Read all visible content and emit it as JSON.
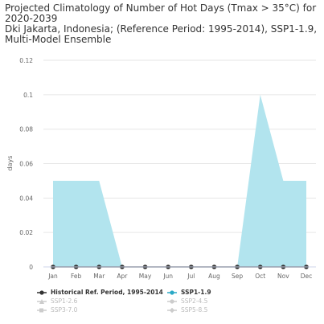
{
  "header": {
    "title_line1": "Projected Climatology of Number of Hot Days (Tmax > 35°C) for",
    "title_line2": "2020-2039",
    "title_line3": "Dki Jakarta, Indonesia; (Reference Period: 1995-2014), SSP1-1.9,",
    "title_line4": "Multi-Model Ensemble"
  },
  "chart_data": {
    "type": "area",
    "categories": [
      "Jan",
      "Feb",
      "Mar",
      "Apr",
      "May",
      "Jun",
      "Jul",
      "Aug",
      "Sep",
      "Oct",
      "Nov",
      "Dec"
    ],
    "ylabel": "days",
    "ylim": [
      0,
      0.12
    ],
    "yticks": [
      "0",
      "0.02",
      "0.04",
      "0.06",
      "0.08",
      "0.1",
      "0.12"
    ],
    "grid": true,
    "series": [
      {
        "name": "SSP1-1.9",
        "kind": "area",
        "values": [
          0.05,
          0.05,
          0.05,
          0,
          0,
          0,
          0,
          0,
          0,
          0.1,
          0.05,
          0.05
        ],
        "color": "#b2e4ee",
        "legend_color": "#2aa9c6"
      },
      {
        "name": "Historical Ref. Period, 1995-2014",
        "kind": "line",
        "values": [
          0,
          0,
          0,
          0,
          0,
          0,
          0,
          0,
          0,
          0,
          0,
          0
        ],
        "color": "#333333"
      }
    ]
  },
  "legend": {
    "items": [
      {
        "label": "Historical Ref. Period, 1995-2014",
        "active": true,
        "color": "#333333"
      },
      {
        "label": "SSP1-1.9",
        "active": true,
        "color": "#2aa9c6"
      },
      {
        "label": "SSP1-2.6",
        "active": false,
        "color": "#cccccc"
      },
      {
        "label": "SSP2-4.5",
        "active": false,
        "color": "#cccccc"
      },
      {
        "label": "SSP3-7.0",
        "active": false,
        "color": "#cccccc"
      },
      {
        "label": "SSP5-8.5",
        "active": false,
        "color": "#cccccc"
      }
    ]
  }
}
